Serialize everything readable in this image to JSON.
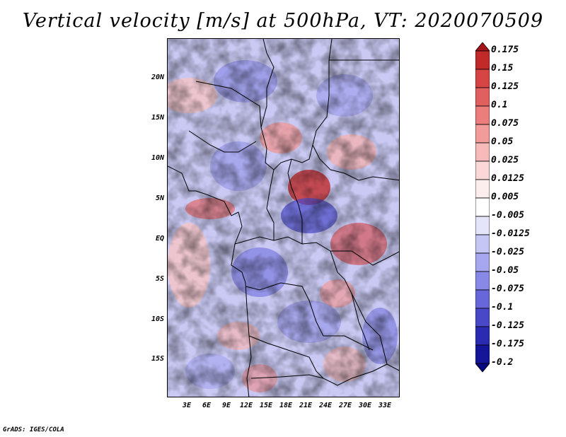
{
  "title": "Vertical velocity [m/s] at 500hPa, VT: 2020070509",
  "footer": "GrADS: IGES/COLA",
  "map": {
    "lat_ticks": [
      "20N",
      "15N",
      "10N",
      "5N",
      "EQ",
      "5S",
      "10S",
      "15S"
    ],
    "lon_ticks": [
      "3E",
      "6E",
      "9E",
      "12E",
      "15E",
      "18E",
      "21E",
      "24E",
      "27E",
      "30E",
      "33E"
    ]
  },
  "colorbar": {
    "labels": [
      "0.175",
      "0.15",
      "0.125",
      "0.1",
      "0.075",
      "0.05",
      "0.025",
      "0.0125",
      "0.005",
      "-0.005",
      "-0.0125",
      "-0.025",
      "-0.05",
      "-0.075",
      "-0.1",
      "-0.125",
      "-0.175",
      "-0.2"
    ],
    "colors": [
      "#a5141a",
      "#c22a2a",
      "#d74444",
      "#e25f5f",
      "#ec7d7d",
      "#f29b9b",
      "#f7baba",
      "#fbd8d8",
      "#fdeeee",
      "#ffffff",
      "#e4e4fb",
      "#c6c6f5",
      "#a7a7ef",
      "#8888e6",
      "#6767d9",
      "#4848c9",
      "#2a2ab3",
      "#15159a",
      "#080880"
    ]
  }
}
